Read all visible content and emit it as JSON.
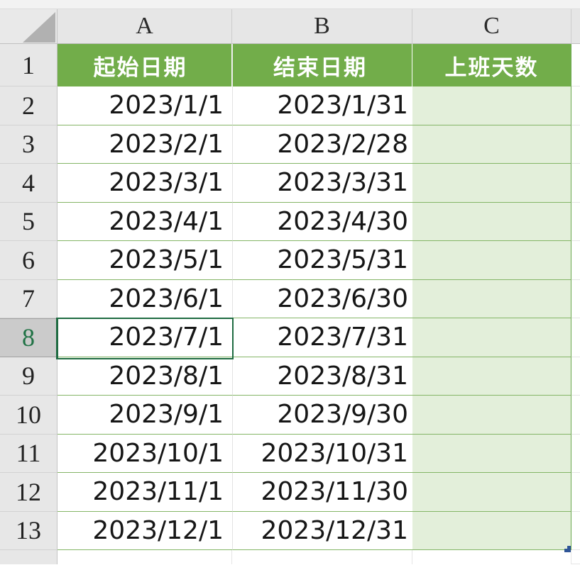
{
  "app": {
    "kind": "spreadsheet-grid",
    "select_all_tooltip": "select-all"
  },
  "column_headers": {
    "a": "A",
    "b": "B",
    "c": "C"
  },
  "table": {
    "header": {
      "start": "起始日期",
      "end": "结束日期",
      "days": "上班天数"
    },
    "header_row_number": "1",
    "rows": [
      {
        "row": "2",
        "start": "2023/1/1",
        "end": "2023/1/31",
        "days": "",
        "active": false
      },
      {
        "row": "3",
        "start": "2023/2/1",
        "end": "2023/2/28",
        "days": "",
        "active": false
      },
      {
        "row": "4",
        "start": "2023/3/1",
        "end": "2023/3/31",
        "days": "",
        "active": false
      },
      {
        "row": "5",
        "start": "2023/4/1",
        "end": "2023/4/30",
        "days": "",
        "active": false
      },
      {
        "row": "6",
        "start": "2023/5/1",
        "end": "2023/5/31",
        "days": "",
        "active": false
      },
      {
        "row": "7",
        "start": "2023/6/1",
        "end": "2023/6/30",
        "days": "",
        "active": false
      },
      {
        "row": "8",
        "start": "2023/7/1",
        "end": "2023/7/31",
        "days": "",
        "active": true
      },
      {
        "row": "9",
        "start": "2023/8/1",
        "end": "2023/8/31",
        "days": "",
        "active": false
      },
      {
        "row": "10",
        "start": "2023/9/1",
        "end": "2023/9/30",
        "days": "",
        "active": false
      },
      {
        "row": "11",
        "start": "2023/10/1",
        "end": "2023/10/31",
        "days": "",
        "active": false
      },
      {
        "row": "12",
        "start": "2023/11/1",
        "end": "2023/11/30",
        "days": "",
        "active": false
      },
      {
        "row": "13",
        "start": "2023/12/1",
        "end": "2023/12/31",
        "days": "",
        "active": false
      }
    ]
  },
  "selection": {
    "active_cell": "A8",
    "active_row": "8"
  },
  "colors": {
    "table_header_green": "#72ad4a",
    "light_green_fill": "#e3efda",
    "row_border_green": "#84b566",
    "table_outer_green": "#6aa84f",
    "selection_green": "#1e6b41",
    "resize_handle_blue": "#2f5597",
    "header_band_gray": "#e6e6e6",
    "active_row_header_gray": "#cbcbcb"
  }
}
